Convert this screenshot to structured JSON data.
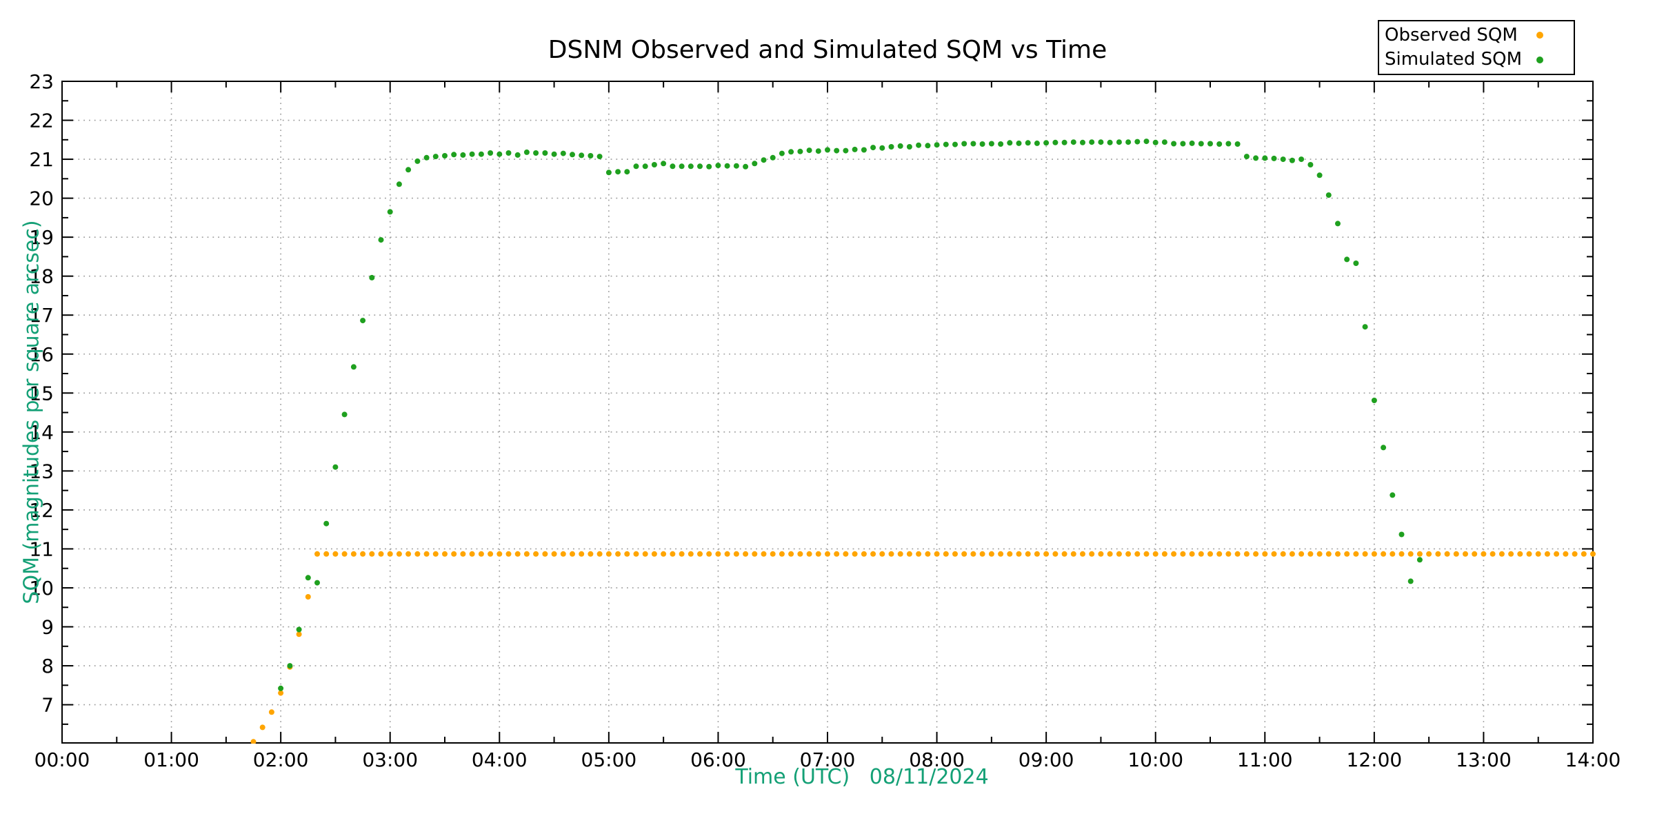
{
  "title": "DSNM Observed and Simulated SQM vs Time",
  "colors": {
    "observed": "#ffa500",
    "simulated": "#1fa01f",
    "axis_title": "#14a076",
    "grid": "#9c9c9c",
    "spine": "#000000",
    "background": "#ffffff"
  },
  "chart_data": {
    "type": "scatter",
    "title": "DSNM Observed and Simulated SQM vs Time",
    "xlabel": "Time (UTC)   08/11/2024",
    "ylabel": "SQM (magnitudes per square arcsec)",
    "grid": "dotted",
    "legend_position": "top-right-outside",
    "x_axis": {
      "unit": "hours UTC",
      "min_hours": 0,
      "max_hours": 14,
      "major_tick_hours": 1,
      "minor_tick_hours": 0.5,
      "tick_labels": [
        "00:00",
        "01:00",
        "02:00",
        "03:00",
        "04:00",
        "05:00",
        "06:00",
        "07:00",
        "08:00",
        "09:00",
        "10:00",
        "11:00",
        "12:00",
        "13:00",
        "14:00"
      ]
    },
    "y_axis": {
      "min": 6.02,
      "max": 23,
      "major_tick": 1,
      "minor_tick": 0.5,
      "tick_labels": [
        7,
        8,
        9,
        10,
        11,
        12,
        13,
        14,
        15,
        16,
        17,
        18,
        19,
        20,
        21,
        22,
        23
      ]
    },
    "series": [
      {
        "name": "Observed SQM",
        "color": "#ffa500",
        "marker": "dot",
        "sample_interval_min": 5,
        "start_min": 105,
        "step_min": 5,
        "values": [
          6.05,
          6.42,
          6.81,
          7.3,
          7.97,
          8.81,
          9.77
        ],
        "plateau": {
          "from_min": 140,
          "to_min": 840,
          "value": 10.87
        }
      },
      {
        "name": "Simulated SQM",
        "color": "#1fa01f",
        "marker": "dot",
        "sample_interval_min": 5,
        "start_min": 120,
        "step_min": 5,
        "values": [
          7.42,
          8.0,
          8.93,
          10.26,
          10.13,
          11.65,
          13.1,
          14.45,
          15.67,
          16.86,
          17.96,
          18.93,
          19.65,
          20.36,
          20.73,
          20.95,
          21.04,
          21.07,
          21.09,
          21.12,
          21.11,
          21.13,
          21.13,
          21.16,
          21.13,
          21.16,
          21.11,
          21.18,
          21.16,
          21.16,
          21.13,
          21.15,
          21.12,
          21.1,
          21.09,
          21.07,
          20.66,
          20.68,
          20.68,
          20.82,
          20.82,
          20.86,
          20.89,
          20.82,
          20.82,
          20.82,
          20.82,
          20.81,
          20.84,
          20.83,
          20.83,
          20.81,
          20.89,
          20.98,
          21.04,
          21.15,
          21.19,
          21.2,
          21.23,
          21.21,
          21.24,
          21.22,
          21.22,
          21.25,
          21.24,
          21.3,
          21.29,
          21.32,
          21.34,
          21.32,
          21.36,
          21.35,
          21.37,
          21.38,
          21.38,
          21.4,
          21.4,
          21.39,
          21.4,
          21.39,
          21.42,
          21.41,
          21.42,
          21.41,
          21.42,
          21.43,
          21.43,
          21.44,
          21.43,
          21.44,
          21.44,
          21.43,
          21.44,
          21.44,
          21.45,
          21.46,
          21.43,
          21.44,
          21.4,
          21.4,
          21.41,
          21.4,
          21.4,
          21.39,
          21.4,
          21.39,
          21.07,
          21.03,
          21.03,
          21.02,
          21.0,
          20.97,
          21.0,
          20.86,
          20.59,
          20.08,
          19.35,
          18.43,
          18.33,
          16.7,
          14.81,
          13.6,
          12.38,
          11.37,
          10.17,
          10.72
        ]
      }
    ],
    "legend": {
      "entries": [
        "Observed SQM",
        "Simulated SQM"
      ]
    }
  }
}
